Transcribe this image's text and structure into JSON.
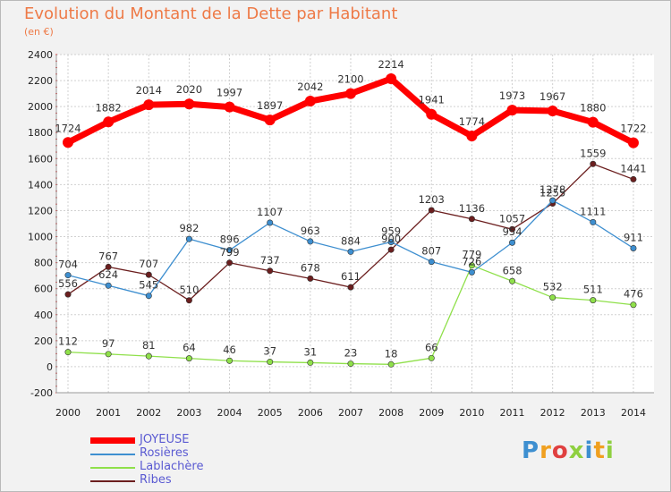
{
  "chart_data": {
    "type": "line",
    "title": "Evolution du Montant de la Dette par Habitant",
    "subtitle": "(en €)",
    "categories": [
      "2000",
      "2001",
      "2002",
      "2003",
      "2004",
      "2005",
      "2006",
      "2007",
      "2008",
      "2009",
      "2010",
      "2011",
      "2012",
      "2013",
      "2014"
    ],
    "ylim": [
      -200,
      2400
    ],
    "yticks": [
      -200,
      0,
      200,
      400,
      600,
      800,
      1000,
      1200,
      1400,
      1600,
      1800,
      2000,
      2200,
      2400
    ],
    "grid": true,
    "legend_position": "bottom-left",
    "series": [
      {
        "name": "JOYEUSE",
        "color": "#ff0000",
        "values": [
          1724,
          1882,
          2014,
          2020,
          1997,
          1897,
          2042,
          2100,
          2214,
          1941,
          1774,
          1973,
          1967,
          1880,
          1722
        ]
      },
      {
        "name": "Rosières",
        "color": "#3e8fd0",
        "values": [
          704,
          624,
          545,
          982,
          896,
          1107,
          963,
          884,
          959,
          807,
          726,
          954,
          1278,
          1111,
          911
        ]
      },
      {
        "name": "Lablachère",
        "color": "#8fe04a",
        "values": [
          112,
          97,
          81,
          64,
          46,
          37,
          31,
          23,
          18,
          66,
          779,
          658,
          532,
          511,
          476
        ]
      },
      {
        "name": "Ribes",
        "color": "#6b1e1e",
        "values": [
          556,
          767,
          707,
          510,
          799,
          737,
          678,
          611,
          900,
          1203,
          1136,
          1057,
          1255,
          1559,
          1441
        ]
      }
    ]
  },
  "logo": {
    "text": "Proxiti"
  }
}
